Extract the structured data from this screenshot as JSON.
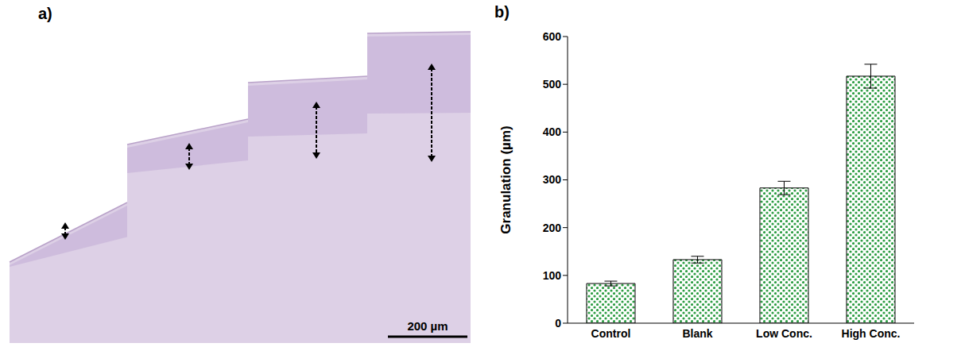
{
  "panel_a": {
    "label": "a)",
    "scale_bar": "200 µm"
  },
  "chart_data": {
    "type": "bar",
    "label": "b)",
    "categories": [
      "Control",
      "Blank",
      "Low Conc.",
      "High Conc."
    ],
    "values": [
      83,
      133,
      283,
      517
    ],
    "errors": [
      5,
      7,
      14,
      25
    ],
    "y_label": "Granulation (µm)",
    "ylim": [
      0,
      600
    ],
    "yticks": [
      0,
      100,
      200,
      300,
      400,
      500,
      600
    ],
    "color": "#2e9e44",
    "grid": false
  }
}
